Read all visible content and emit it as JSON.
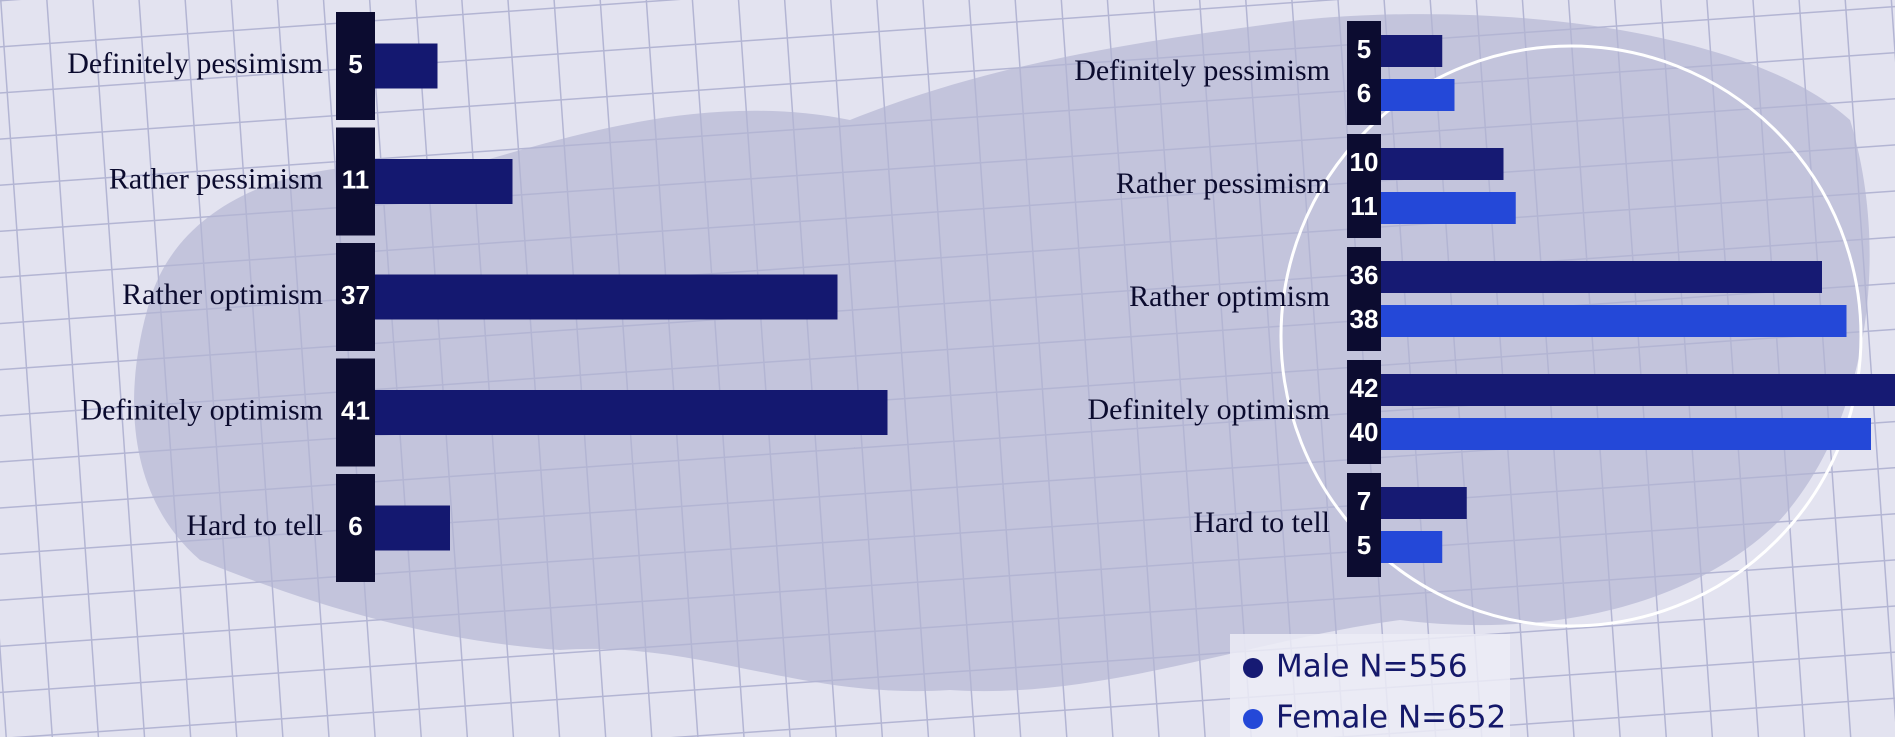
{
  "chart_data": [
    {
      "type": "bar",
      "orientation": "horizontal",
      "categories": [
        "Definitely pessimism",
        "Rather pessimism",
        "Rather optimism",
        "Definitely optimism",
        "Hard to tell"
      ],
      "values": [
        5,
        11,
        37,
        41,
        6
      ],
      "color": "#141870"
    },
    {
      "type": "grouped-bar",
      "orientation": "horizontal",
      "categories": [
        "Definitely pessimism",
        "Rather pessimism",
        "Rather optimism",
        "Definitely optimism",
        "Hard to tell"
      ],
      "series": [
        {
          "name": "Male N=556",
          "color": "#161a73",
          "values": [
            5,
            10,
            36,
            42,
            7
          ]
        },
        {
          "name": "Female N=652",
          "color": "#2448d8",
          "values": [
            6,
            11,
            38,
            40,
            5
          ]
        }
      ],
      "legend": "bottom-right"
    }
  ]
}
